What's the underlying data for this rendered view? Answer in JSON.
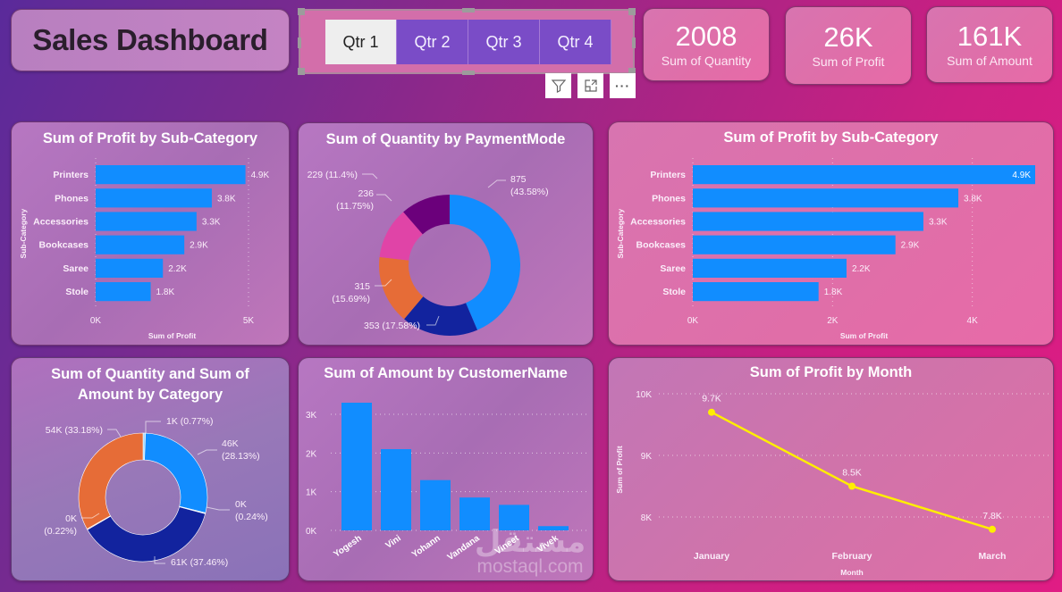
{
  "header": {
    "title": "Sales Dashboard"
  },
  "slicer": {
    "options": [
      "Qtr 1",
      "Qtr 2",
      "Qtr 3",
      "Qtr 4"
    ],
    "selected": "Qtr 1",
    "tools": {
      "filter_icon": "filter-icon",
      "focus_icon": "focus-mode-icon",
      "more_icon": "more-options-icon",
      "more_label": "···"
    }
  },
  "kpis": [
    {
      "value": "2008",
      "label": "Sum of Quantity"
    },
    {
      "value": "26K",
      "label": "Sum of Profit"
    },
    {
      "value": "161K",
      "label": "Sum of Amount"
    }
  ],
  "colors": {
    "bar_blue": "#118dff",
    "navy": "#12239e",
    "orange": "#e66c37",
    "pink": "#e044a7",
    "purple": "#6b007b",
    "line_yellow": "#ffee00"
  },
  "chart_data": [
    {
      "id": "profit_subcat_small",
      "type": "bar",
      "orientation": "horizontal",
      "title": "Sum of Profit by Sub-Category",
      "categories": [
        "Printers",
        "Phones",
        "Accessories",
        "Bookcases",
        "Saree",
        "Stole"
      ],
      "values": [
        4900,
        3800,
        3300,
        2900,
        2200,
        1800
      ],
      "data_labels": [
        "4.9K",
        "3.8K",
        "3.3K",
        "2.9K",
        "2.2K",
        "1.8K"
      ],
      "xlabel": "Sum of Profit",
      "ylabel": "Sub-Category",
      "xlim": [
        0,
        5000
      ],
      "xticks": [
        0,
        5000
      ],
      "xtick_labels": [
        "0K",
        "5K"
      ],
      "grid": true
    },
    {
      "id": "quantity_paymentmode",
      "type": "pie",
      "donut": true,
      "title": "Sum of Quantity by PaymentMode",
      "values": [
        875,
        353,
        315,
        236,
        229
      ],
      "percents": [
        43.58,
        17.58,
        15.69,
        11.75,
        11.4
      ],
      "labels": [
        "875 (43.58%)",
        "353 (17.58%)",
        "315 (15.69%)",
        "236 (11.75%)",
        "229 (11.4%)"
      ],
      "colors": [
        "#118dff",
        "#12239e",
        "#e66c37",
        "#e044a7",
        "#6b007b"
      ]
    },
    {
      "id": "profit_subcat_large",
      "type": "bar",
      "orientation": "horizontal",
      "title": "Sum of Profit by Sub-Category",
      "categories": [
        "Printers",
        "Phones",
        "Accessories",
        "Bookcases",
        "Saree",
        "Stole"
      ],
      "values": [
        4900,
        3800,
        3300,
        2900,
        2200,
        1800
      ],
      "data_labels": [
        "4.9K",
        "3.8K",
        "3.3K",
        "2.9K",
        "2.2K",
        "1.8K"
      ],
      "xlabel": "Sum of Profit",
      "ylabel": "Sub-Category",
      "xlim": [
        0,
        4900
      ],
      "xticks": [
        0,
        2000,
        4000
      ],
      "xtick_labels": [
        "0K",
        "2K",
        "4K"
      ],
      "grid": true
    },
    {
      "id": "qty_amount_category",
      "type": "pie",
      "donut": true,
      "title": "Sum of Quantity and Sum of Amount by Category",
      "values": [
        1,
        46,
        0.4,
        61,
        0.35,
        54
      ],
      "percents": [
        0.77,
        28.13,
        0.24,
        37.46,
        0.22,
        33.18
      ],
      "labels": [
        "1K (0.77%)",
        "46K (28.13%)",
        "0K (0.24%)",
        "61K (37.46%)",
        "0K (0.22%)",
        "54K (33.18%)"
      ],
      "colors": [
        "#9fd8ff",
        "#118dff",
        "#c9e6ff",
        "#12239e",
        "#f6b89a",
        "#e66c37"
      ]
    },
    {
      "id": "amount_customer",
      "type": "bar",
      "orientation": "vertical",
      "title": "Sum of Amount by CustomerName",
      "categories": [
        "Yogesh",
        "Vini",
        "Yohann",
        "Vandana",
        "Vineet",
        "Vivek"
      ],
      "values": [
        3300,
        2100,
        1300,
        850,
        660,
        110
      ],
      "ylim": [
        0,
        3000
      ],
      "yticks": [
        0,
        1000,
        2000,
        3000
      ],
      "ytick_labels": [
        "0K",
        "1K",
        "2K",
        "3K"
      ],
      "grid": true
    },
    {
      "id": "profit_month",
      "type": "line",
      "title": "Sum of Profit by Month",
      "categories": [
        "January",
        "February",
        "March"
      ],
      "values": [
        9700,
        8500,
        7800
      ],
      "data_labels": [
        "9.7K",
        "8.5K",
        "7.8K"
      ],
      "xlabel": "Month",
      "ylabel": "Sum of Profit",
      "ylim": [
        8000,
        10000
      ],
      "yticks": [
        8000,
        9000,
        10000
      ],
      "ytick_labels": [
        "8K",
        "9K",
        "10K"
      ],
      "grid": true
    }
  ],
  "watermark": {
    "text": "mostaql.com",
    "arabic": "مستقل"
  }
}
